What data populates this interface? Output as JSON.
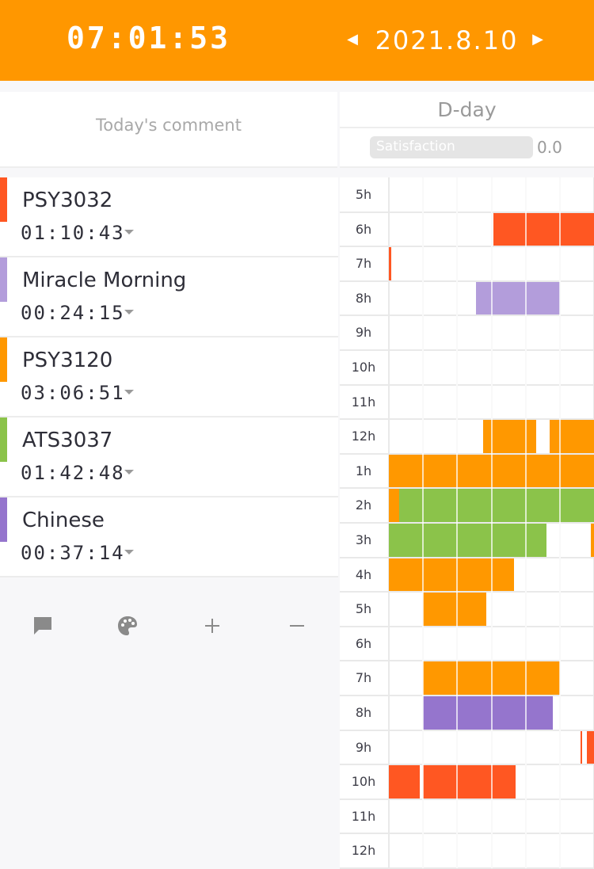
{
  "header": {
    "total_time": "07:01:53",
    "date": "2021.8.10",
    "prev_icon": "caret-left-icon",
    "next_icon": "caret-right-icon"
  },
  "comment": {
    "placeholder": "Today's comment"
  },
  "dday": {
    "label": "D-day",
    "satisfaction_label": "Satisfaction",
    "satisfaction_value": "0.0",
    "satisfaction_level": 0
  },
  "subjects": [
    {
      "name": "PSY3032",
      "time": "01:10:43",
      "color": "#ff5722"
    },
    {
      "name": "Miracle Morning",
      "time": "00:24:15",
      "color": "#b39ddb"
    },
    {
      "name": "PSY3120",
      "time": "03:06:51",
      "color": "#ff9800"
    },
    {
      "name": "ATS3037",
      "time": "01:42:48",
      "color": "#8bc34a"
    },
    {
      "name": "Chinese",
      "time": "00:37:14",
      "color": "#9575cd"
    }
  ],
  "toolbar": {
    "items": [
      {
        "icon": "comment-icon"
      },
      {
        "icon": "palette-icon"
      },
      {
        "icon": "plus-icon"
      },
      {
        "icon": "minus-icon"
      }
    ]
  },
  "timetable": {
    "hours": [
      "5h",
      "6h",
      "7h",
      "8h",
      "9h",
      "10h",
      "11h",
      "12h",
      "1h",
      "2h",
      "3h",
      "4h",
      "5h",
      "6h",
      "7h",
      "8h",
      "9h",
      "10h",
      "11h",
      "12h"
    ],
    "colors": {
      "PSY3032": "#ff5722",
      "Miracle Morning": "#b39ddb",
      "PSY3120": "#ff9800",
      "ATS3037": "#8bc34a",
      "Chinese": "#9575cd"
    },
    "blocks": [
      {
        "subject": "PSY3032",
        "row": 1,
        "start": 3.05,
        "end": 6.0
      },
      {
        "subject": "PSY3032",
        "row": 2,
        "start": 0.0,
        "end": 0.08
      },
      {
        "subject": "Miracle Morning",
        "row": 3,
        "start": 2.55,
        "end": 5.0
      },
      {
        "subject": "PSY3120",
        "row": 7,
        "start": 2.75,
        "end": 4.3
      },
      {
        "subject": "PSY3120",
        "row": 7,
        "start": 4.7,
        "end": 6.0
      },
      {
        "subject": "PSY3120",
        "row": 8,
        "start": 0.0,
        "end": 6.0
      },
      {
        "subject": "PSY3120",
        "row": 9,
        "start": 0.0,
        "end": 0.3
      },
      {
        "subject": "ATS3037",
        "row": 9,
        "start": 0.3,
        "end": 6.0
      },
      {
        "subject": "ATS3037",
        "row": 10,
        "start": 0.0,
        "end": 4.6
      },
      {
        "subject": "PSY3120",
        "row": 10,
        "start": 5.9,
        "end": 6.0
      },
      {
        "subject": "PSY3120",
        "row": 11,
        "start": 0.0,
        "end": 3.65
      },
      {
        "subject": "PSY3120",
        "row": 12,
        "start": 1.0,
        "end": 2.85
      },
      {
        "subject": "PSY3120",
        "row": 14,
        "start": 1.0,
        "end": 5.0
      },
      {
        "subject": "Chinese",
        "row": 15,
        "start": 1.0,
        "end": 4.8
      },
      {
        "subject": "PSY3032",
        "row": 16,
        "start": 5.6,
        "end": 5.65
      },
      {
        "subject": "PSY3032",
        "row": 16,
        "start": 5.8,
        "end": 6.0
      },
      {
        "subject": "PSY3032",
        "row": 17,
        "start": 0.0,
        "end": 0.9
      },
      {
        "subject": "PSY3032",
        "row": 17,
        "start": 1.0,
        "end": 3.7
      }
    ]
  }
}
